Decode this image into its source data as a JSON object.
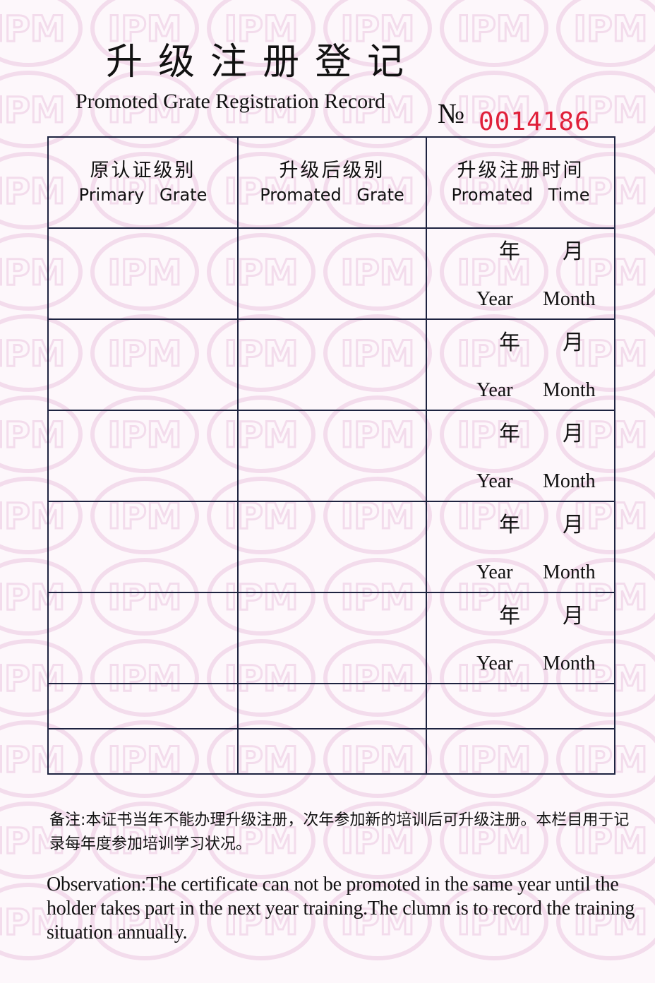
{
  "title": {
    "cn": "升级注册登记",
    "en": "Promoted Grate Registration Record"
  },
  "number": {
    "prefix": "№",
    "value": "0014186",
    "color": "#e0203a"
  },
  "table": {
    "headers": [
      {
        "cn": "原认证级别",
        "en": "Primary Grate"
      },
      {
        "cn": "升级后级别",
        "en": "Promated Grate"
      },
      {
        "cn": "升级注册时间",
        "en": "Promated Time"
      }
    ],
    "date_labels": {
      "year_cn": "年",
      "month_cn": "月",
      "year_en": "Year",
      "month_en": "Month"
    }
  },
  "note": {
    "cn": "备注:本证书当年不能办理升级注册，次年参加新的培训后可升级注册。本栏目用于记录每年度参加培训学习状况。",
    "en": "Observation:The  certificate can not be promoted in the same year  until  the holder takes part in the next year training.The clumn is to record the training situation annually."
  },
  "watermark": "IPM"
}
